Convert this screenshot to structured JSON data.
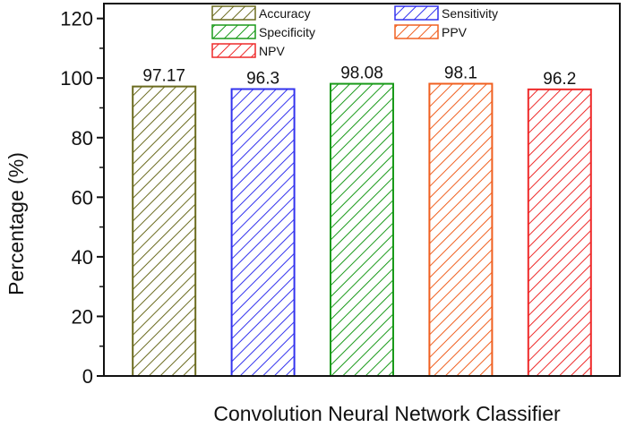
{
  "chart_data": {
    "type": "bar",
    "title": "",
    "xlabel": "Convolution Neural Network Classifier",
    "ylabel": "Percentage (%)",
    "ylim": [
      0,
      125
    ],
    "yticks": [
      0,
      20,
      40,
      60,
      80,
      100,
      120
    ],
    "grid": false,
    "legend_position": "top",
    "series": [
      {
        "name": "Accuracy",
        "values": [
          97.17
        ],
        "color": "#6b6b1f"
      },
      {
        "name": "Sensitivity",
        "values": [
          96.3
        ],
        "color": "#3333ee"
      },
      {
        "name": "Specificity",
        "values": [
          98.08
        ],
        "color": "#1a9a1a"
      },
      {
        "name": "PPV",
        "values": [
          98.1
        ],
        "color": "#f06020"
      },
      {
        "name": "NPV",
        "values": [
          96.2
        ],
        "color": "#ee2a2a"
      }
    ],
    "data_labels": [
      "97.17",
      "96.3",
      "98.08",
      "98.1",
      "96.2"
    ]
  }
}
